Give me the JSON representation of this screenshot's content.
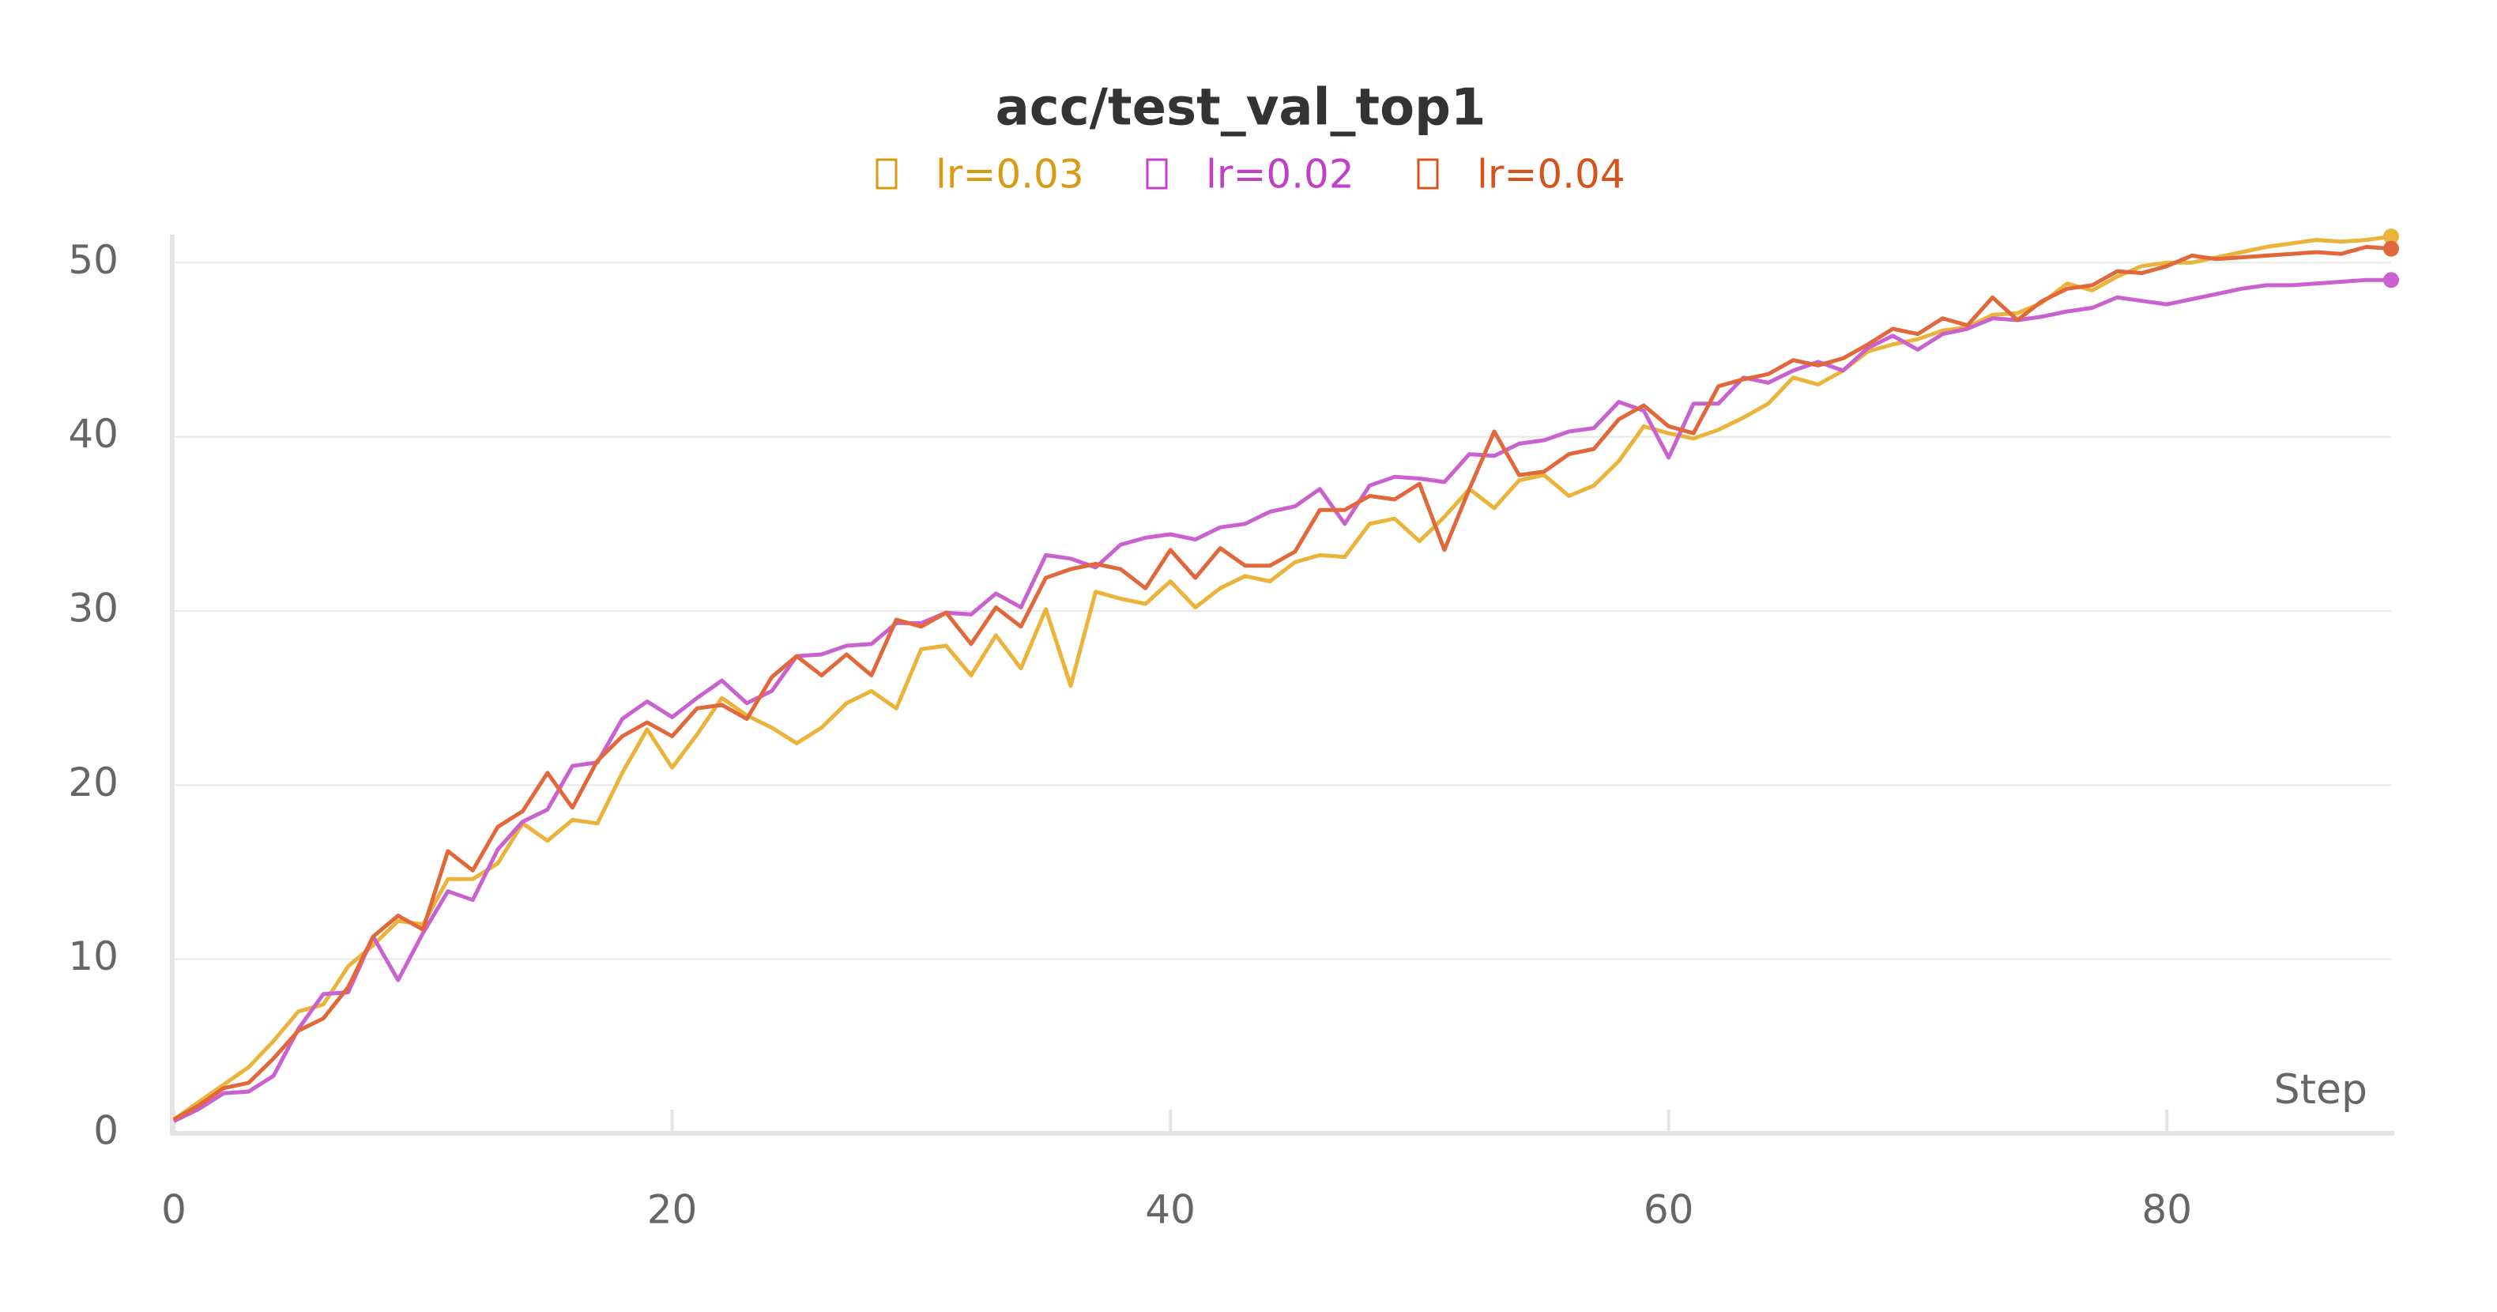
{
  "chart_data": {
    "type": "line",
    "title": "acc/test_val_top1",
    "x_label": "Step",
    "x": [
      0,
      1,
      2,
      3,
      4,
      5,
      6,
      7,
      8,
      9,
      10,
      11,
      12,
      13,
      14,
      15,
      16,
      17,
      18,
      19,
      20,
      21,
      22,
      23,
      24,
      25,
      26,
      27,
      28,
      29,
      30,
      31,
      32,
      33,
      34,
      35,
      36,
      37,
      38,
      39,
      40,
      41,
      42,
      43,
      44,
      45,
      46,
      47,
      48,
      49,
      50,
      51,
      52,
      53,
      54,
      55,
      56,
      57,
      58,
      59,
      60,
      61,
      62,
      63,
      64,
      65,
      66,
      67,
      68,
      69,
      70,
      71,
      72,
      73,
      74,
      75,
      76,
      77,
      78,
      79,
      80,
      81,
      82,
      83,
      84,
      85,
      86,
      87,
      88,
      89
    ],
    "series": [
      {
        "name": "lr=0.03",
        "color": "#ebb33a",
        "label_color": "#d99a14",
        "values": [
          0.8,
          1.8,
          2.8,
          3.8,
          5.3,
          7.0,
          7.4,
          9.6,
          10.8,
          12.2,
          12.0,
          14.6,
          14.6,
          15.5,
          17.8,
          16.8,
          18.0,
          17.8,
          20.7,
          23.2,
          21.0,
          22.9,
          25.0,
          24.0,
          23.3,
          22.4,
          23.3,
          24.7,
          25.4,
          24.4,
          27.8,
          28.0,
          26.3,
          28.6,
          26.7,
          30.1,
          25.7,
          31.1,
          30.7,
          30.4,
          31.7,
          30.2,
          31.3,
          32.0,
          31.7,
          32.8,
          33.2,
          33.1,
          35.0,
          35.3,
          34.0,
          35.4,
          37.0,
          35.9,
          37.5,
          37.8,
          36.6,
          37.2,
          38.6,
          40.6,
          40.2,
          39.9,
          40.4,
          41.1,
          41.9,
          43.4,
          43.0,
          43.8,
          44.9,
          45.3,
          45.6,
          46.1,
          46.3,
          47.0,
          47.1,
          47.7,
          48.8,
          48.4,
          49.2,
          49.8,
          50.0,
          50.0,
          50.3,
          50.6,
          50.9,
          51.1,
          51.3,
          51.2,
          51.3,
          51.5
        ]
      },
      {
        "name": "lr=0.02",
        "color": "#c961cf",
        "label_color": "#c040c8",
        "values": [
          0.7,
          1.4,
          2.3,
          2.4,
          3.3,
          6.0,
          8.0,
          8.1,
          11.3,
          8.8,
          11.5,
          13.9,
          13.4,
          16.3,
          17.9,
          18.6,
          21.1,
          21.3,
          23.8,
          24.8,
          23.9,
          25.0,
          26.0,
          24.7,
          25.4,
          27.4,
          27.5,
          28.0,
          28.1,
          29.3,
          29.3,
          29.9,
          29.8,
          31.0,
          30.2,
          33.2,
          33.0,
          32.5,
          33.8,
          34.2,
          34.4,
          34.1,
          34.8,
          35.0,
          35.7,
          36.0,
          37.0,
          35.0,
          37.2,
          37.7,
          37.6,
          37.4,
          39.0,
          38.9,
          39.6,
          39.8,
          40.3,
          40.5,
          42.0,
          41.5,
          38.8,
          41.9,
          41.9,
          43.4,
          43.1,
          43.8,
          44.3,
          43.8,
          45.1,
          45.8,
          45.0,
          45.9,
          46.2,
          46.8,
          46.7,
          46.9,
          47.2,
          47.4,
          48.0,
          47.8,
          47.6,
          47.9,
          48.2,
          48.5,
          48.7,
          48.7,
          48.8,
          48.9,
          49.0,
          49.0
        ]
      },
      {
        "name": "lr=0.04",
        "color": "#e0683a",
        "label_color": "#d4541c",
        "values": [
          0.8,
          1.6,
          2.6,
          2.9,
          4.3,
          5.9,
          6.6,
          8.4,
          11.3,
          12.5,
          11.7,
          16.2,
          15.1,
          17.6,
          18.5,
          20.7,
          18.7,
          21.4,
          22.8,
          23.6,
          22.8,
          24.4,
          24.6,
          23.8,
          26.2,
          27.4,
          26.3,
          27.5,
          26.3,
          29.5,
          29.1,
          29.9,
          28.1,
          30.2,
          29.1,
          31.9,
          32.4,
          32.7,
          32.4,
          31.3,
          33.5,
          31.9,
          33.6,
          32.6,
          32.6,
          33.4,
          35.8,
          35.8,
          36.6,
          36.4,
          37.3,
          33.5,
          37.0,
          40.3,
          37.8,
          38.0,
          39.0,
          39.3,
          41.0,
          41.8,
          40.6,
          40.2,
          42.9,
          43.3,
          43.6,
          44.4,
          44.1,
          44.5,
          45.3,
          46.2,
          45.9,
          46.8,
          46.4,
          48.0,
          46.7,
          47.8,
          48.5,
          48.7,
          49.5,
          49.4,
          49.8,
          50.4,
          50.2,
          50.3,
          50.4,
          50.5,
          50.6,
          50.5,
          50.9,
          50.8
        ]
      }
    ],
    "xlim": [
      0,
      89
    ],
    "xticks": [
      0,
      20,
      40,
      60,
      80
    ],
    "ylim": [
      0,
      51.6
    ],
    "yticks": [
      0,
      10,
      20,
      30,
      40,
      50
    ],
    "grid": true
  }
}
